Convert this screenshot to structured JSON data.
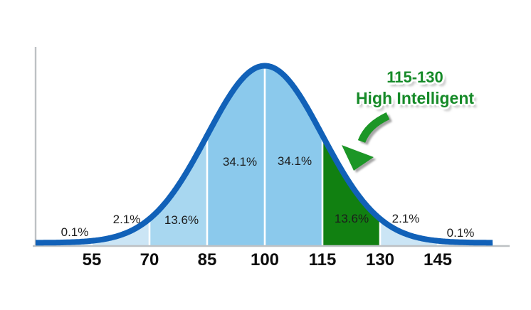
{
  "chart_data": {
    "type": "area",
    "description": "Bell curve (normal distribution) of IQ scores with the 115-130 band highlighted",
    "x_ticks": [
      "55",
      "70",
      "85",
      "100",
      "115",
      "130",
      "145"
    ],
    "mean": 100,
    "sd": 15,
    "values": [
      0.1,
      2.1,
      13.6,
      34.1,
      34.1,
      13.6,
      2.1,
      0.1
    ],
    "segments": [
      {
        "range": "below 55",
        "percent": "0.1%",
        "fill": "#DDEEF9",
        "highlighted": false
      },
      {
        "range": "55-70",
        "percent": "2.1%",
        "fill": "#CBE5F5",
        "highlighted": false
      },
      {
        "range": "70-85",
        "percent": "13.6%",
        "fill": "#A8D7F0",
        "highlighted": false
      },
      {
        "range": "85-100",
        "percent": "34.1%",
        "fill": "#8BC9EC",
        "highlighted": false
      },
      {
        "range": "100-115",
        "percent": "34.1%",
        "fill": "#8BC9EC",
        "highlighted": false
      },
      {
        "range": "115-130",
        "percent": "13.6%",
        "fill": "#118011",
        "highlighted": true
      },
      {
        "range": "130-145",
        "percent": "2.1%",
        "fill": "#CBE5F5",
        "highlighted": false
      },
      {
        "range": "above 145",
        "percent": "0.1%",
        "fill": "#DDEEF9",
        "highlighted": false
      }
    ],
    "curve_color": "#1161B8",
    "axis_color": "#BDC1C4",
    "divider_color": "#FFFFFF",
    "grid": "off",
    "legend": "none"
  },
  "annotation": {
    "line1": "115-130",
    "line2": "High Intelligent",
    "text_color": "#168A28",
    "arrow_color": "#1E9628"
  }
}
